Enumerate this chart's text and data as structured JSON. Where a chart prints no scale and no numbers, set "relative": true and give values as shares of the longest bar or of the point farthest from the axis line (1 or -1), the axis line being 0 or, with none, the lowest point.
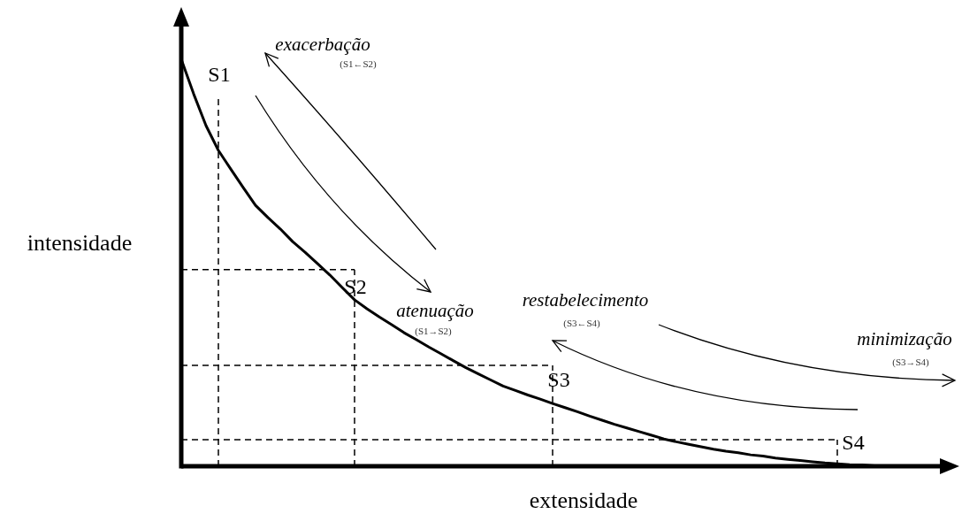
{
  "chart_data": {
    "type": "line",
    "relative": true,
    "xlabel": "extensidade",
    "ylabel": "intensidade",
    "categories": [
      null,
      null,
      null,
      null,
      null,
      null,
      null,
      null,
      null,
      null,
      null,
      null,
      null,
      null,
      null,
      null,
      null,
      null,
      null,
      null,
      null,
      null,
      null,
      null,
      null,
      null,
      null,
      null,
      null,
      null,
      null,
      null,
      null,
      null,
      null,
      null,
      null,
      null,
      null,
      null,
      null,
      null,
      null,
      null,
      null,
      null,
      null,
      null,
      null,
      null,
      null,
      null,
      null,
      null,
      null,
      null,
      null,
      null
    ],
    "series": [
      {
        "color": "#000000",
        "values": [
          1,
          0.915,
          0.837,
          0.776,
          0.73,
          0.685,
          0.641,
          0.611,
          0.583,
          0.552,
          0.526,
          0.498,
          0.47,
          0.439,
          0.409,
          0.387,
          0.367,
          0.348,
          0.328,
          0.311,
          0.293,
          0.276,
          0.259,
          0.242,
          0.227,
          0.212,
          0.197,
          0.186,
          0.175,
          0.165,
          0.154,
          0.144,
          0.134,
          0.123,
          0.113,
          0.103,
          0.094,
          0.085,
          0.076,
          0.067,
          0.06,
          0.054,
          0.048,
          0.042,
          0.037,
          0.033,
          0.028,
          0.025,
          0.02,
          0.017,
          0.014,
          0.011,
          0.008,
          0.006,
          0.004,
          0.003,
          0.001,
          0
        ]
      }
    ],
    "ref_lines": [
      {
        "axis": "y",
        "value": 0.483,
        "line_style": "dashed"
      },
      {
        "axis": "y",
        "value": 0.248,
        "line_style": "dashed"
      },
      {
        "axis": "y",
        "value": 0.065,
        "line_style": "dashed"
      }
    ],
    "annotations": [
      "S1",
      "S2",
      "S3",
      "S4",
      "exacerbação",
      "(S1←S2)",
      "atenuação",
      "(S1→S2)",
      "restabelecimento",
      "(S3←S4)",
      "minimização",
      "(S3→S4)"
    ]
  }
}
